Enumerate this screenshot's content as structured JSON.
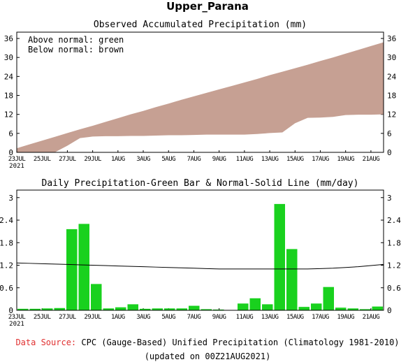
{
  "page": {
    "title": "Upper_Parana"
  },
  "footer": {
    "source_label": "Data Source:",
    "source_text": " CPC (Gauge-Based) Unified Precipitation (Climatology 1981-2010)",
    "updated": "(updated on 00Z21AUG2021)"
  },
  "colors": {
    "fill_below": "#c6a093",
    "bars": "#19d11e",
    "normal_line": "#000000",
    "source_label": "#e03030"
  },
  "chart_data": [
    {
      "type": "area",
      "title": "Observed Accumulated Precipitation (mm)",
      "legend_text": [
        "Above normal: green",
        "Below normal: brown"
      ],
      "legend_position": "top-left",
      "x_ticks": [
        "23JUL",
        "25JUL",
        "27JUL",
        "29JUL",
        "1AUG",
        "3AUG",
        "5AUG",
        "7AUG",
        "9AUG",
        "11AUG",
        "13AUG",
        "15AUG",
        "17AUG",
        "19AUG",
        "21AUG"
      ],
      "x_year_label": "2021",
      "y_ticks": [
        "0",
        "6",
        "12",
        "18",
        "24",
        "30",
        "36"
      ],
      "ylim": [
        0,
        38
      ],
      "days": [
        "23JUL",
        "24JUL",
        "25JUL",
        "26JUL",
        "27JUL",
        "28JUL",
        "29JUL",
        "30JUL",
        "31JUL",
        "1AUG",
        "2AUG",
        "3AUG",
        "4AUG",
        "5AUG",
        "6AUG",
        "7AUG",
        "8AUG",
        "9AUG",
        "10AUG",
        "11AUG",
        "12AUG",
        "13AUG",
        "14AUG",
        "15AUG",
        "16AUG",
        "17AUG",
        "18AUG",
        "19AUG",
        "20AUG",
        "21AUG"
      ],
      "series": [
        {
          "role": "normal",
          "values": [
            1.3,
            2.5,
            3.7,
            4.9,
            6.1,
            7.3,
            8.4,
            9.6,
            10.8,
            12.0,
            13.1,
            14.3,
            15.4,
            16.6,
            17.7,
            18.8,
            19.9,
            21.0,
            22.1,
            23.2,
            24.4,
            25.5,
            26.6,
            27.7,
            28.9,
            30.0,
            31.2,
            32.4,
            33.6,
            34.8
          ]
        },
        {
          "role": "observed",
          "values": [
            0.0,
            0.0,
            0.0,
            0.0,
            2.1,
            4.5,
            5.0,
            5.1,
            5.1,
            5.2,
            5.2,
            5.3,
            5.4,
            5.4,
            5.5,
            5.6,
            5.6,
            5.6,
            5.6,
            5.8,
            6.1,
            6.3,
            9.2,
            10.9,
            11.0,
            11.2,
            11.8,
            11.9,
            11.9,
            12.0
          ]
        }
      ],
      "grid": false
    },
    {
      "type": "bar",
      "title": "Daily Precipitation-Green Bar & Normal-Solid Line (mm/day)",
      "x_ticks": [
        "23JUL",
        "25JUL",
        "27JUL",
        "29JUL",
        "1AUG",
        "3AUG",
        "5AUG",
        "7AUG",
        "9AUG",
        "11AUG",
        "13AUG",
        "15AUG",
        "17AUG",
        "19AUG",
        "21AUG"
      ],
      "x_year_label": "2021",
      "y_ticks": [
        "0",
        "0.6",
        "1.2",
        "1.8",
        "2.4",
        "3"
      ],
      "ylim": [
        0,
        3.2
      ],
      "days": [
        "23JUL",
        "24JUL",
        "25JUL",
        "26JUL",
        "27JUL",
        "28JUL",
        "29JUL",
        "30JUL",
        "31JUL",
        "1AUG",
        "2AUG",
        "3AUG",
        "4AUG",
        "5AUG",
        "6AUG",
        "7AUG",
        "8AUG",
        "9AUG",
        "10AUG",
        "11AUG",
        "12AUG",
        "13AUG",
        "14AUG",
        "15AUG",
        "16AUG",
        "17AUG",
        "18AUG",
        "19AUG",
        "20AUG",
        "21AUG"
      ],
      "series": [
        {
          "role": "daily",
          "values": [
            0.04,
            0.04,
            0.05,
            0.06,
            2.16,
            2.3,
            0.7,
            0.05,
            0.08,
            0.16,
            0.04,
            0.05,
            0.05,
            0.05,
            0.12,
            0.03,
            0.02,
            0.0,
            0.18,
            0.32,
            0.16,
            2.83,
            1.63,
            0.09,
            0.18,
            0.62,
            0.07,
            0.05,
            0.03,
            0.1
          ]
        },
        {
          "role": "normal",
          "values": [
            1.26,
            1.25,
            1.24,
            1.23,
            1.22,
            1.21,
            1.2,
            1.19,
            1.18,
            1.17,
            1.16,
            1.15,
            1.14,
            1.13,
            1.12,
            1.11,
            1.1,
            1.1,
            1.1,
            1.1,
            1.1,
            1.1,
            1.1,
            1.1,
            1.11,
            1.12,
            1.14,
            1.16,
            1.19,
            1.22
          ]
        }
      ],
      "grid": false
    }
  ]
}
